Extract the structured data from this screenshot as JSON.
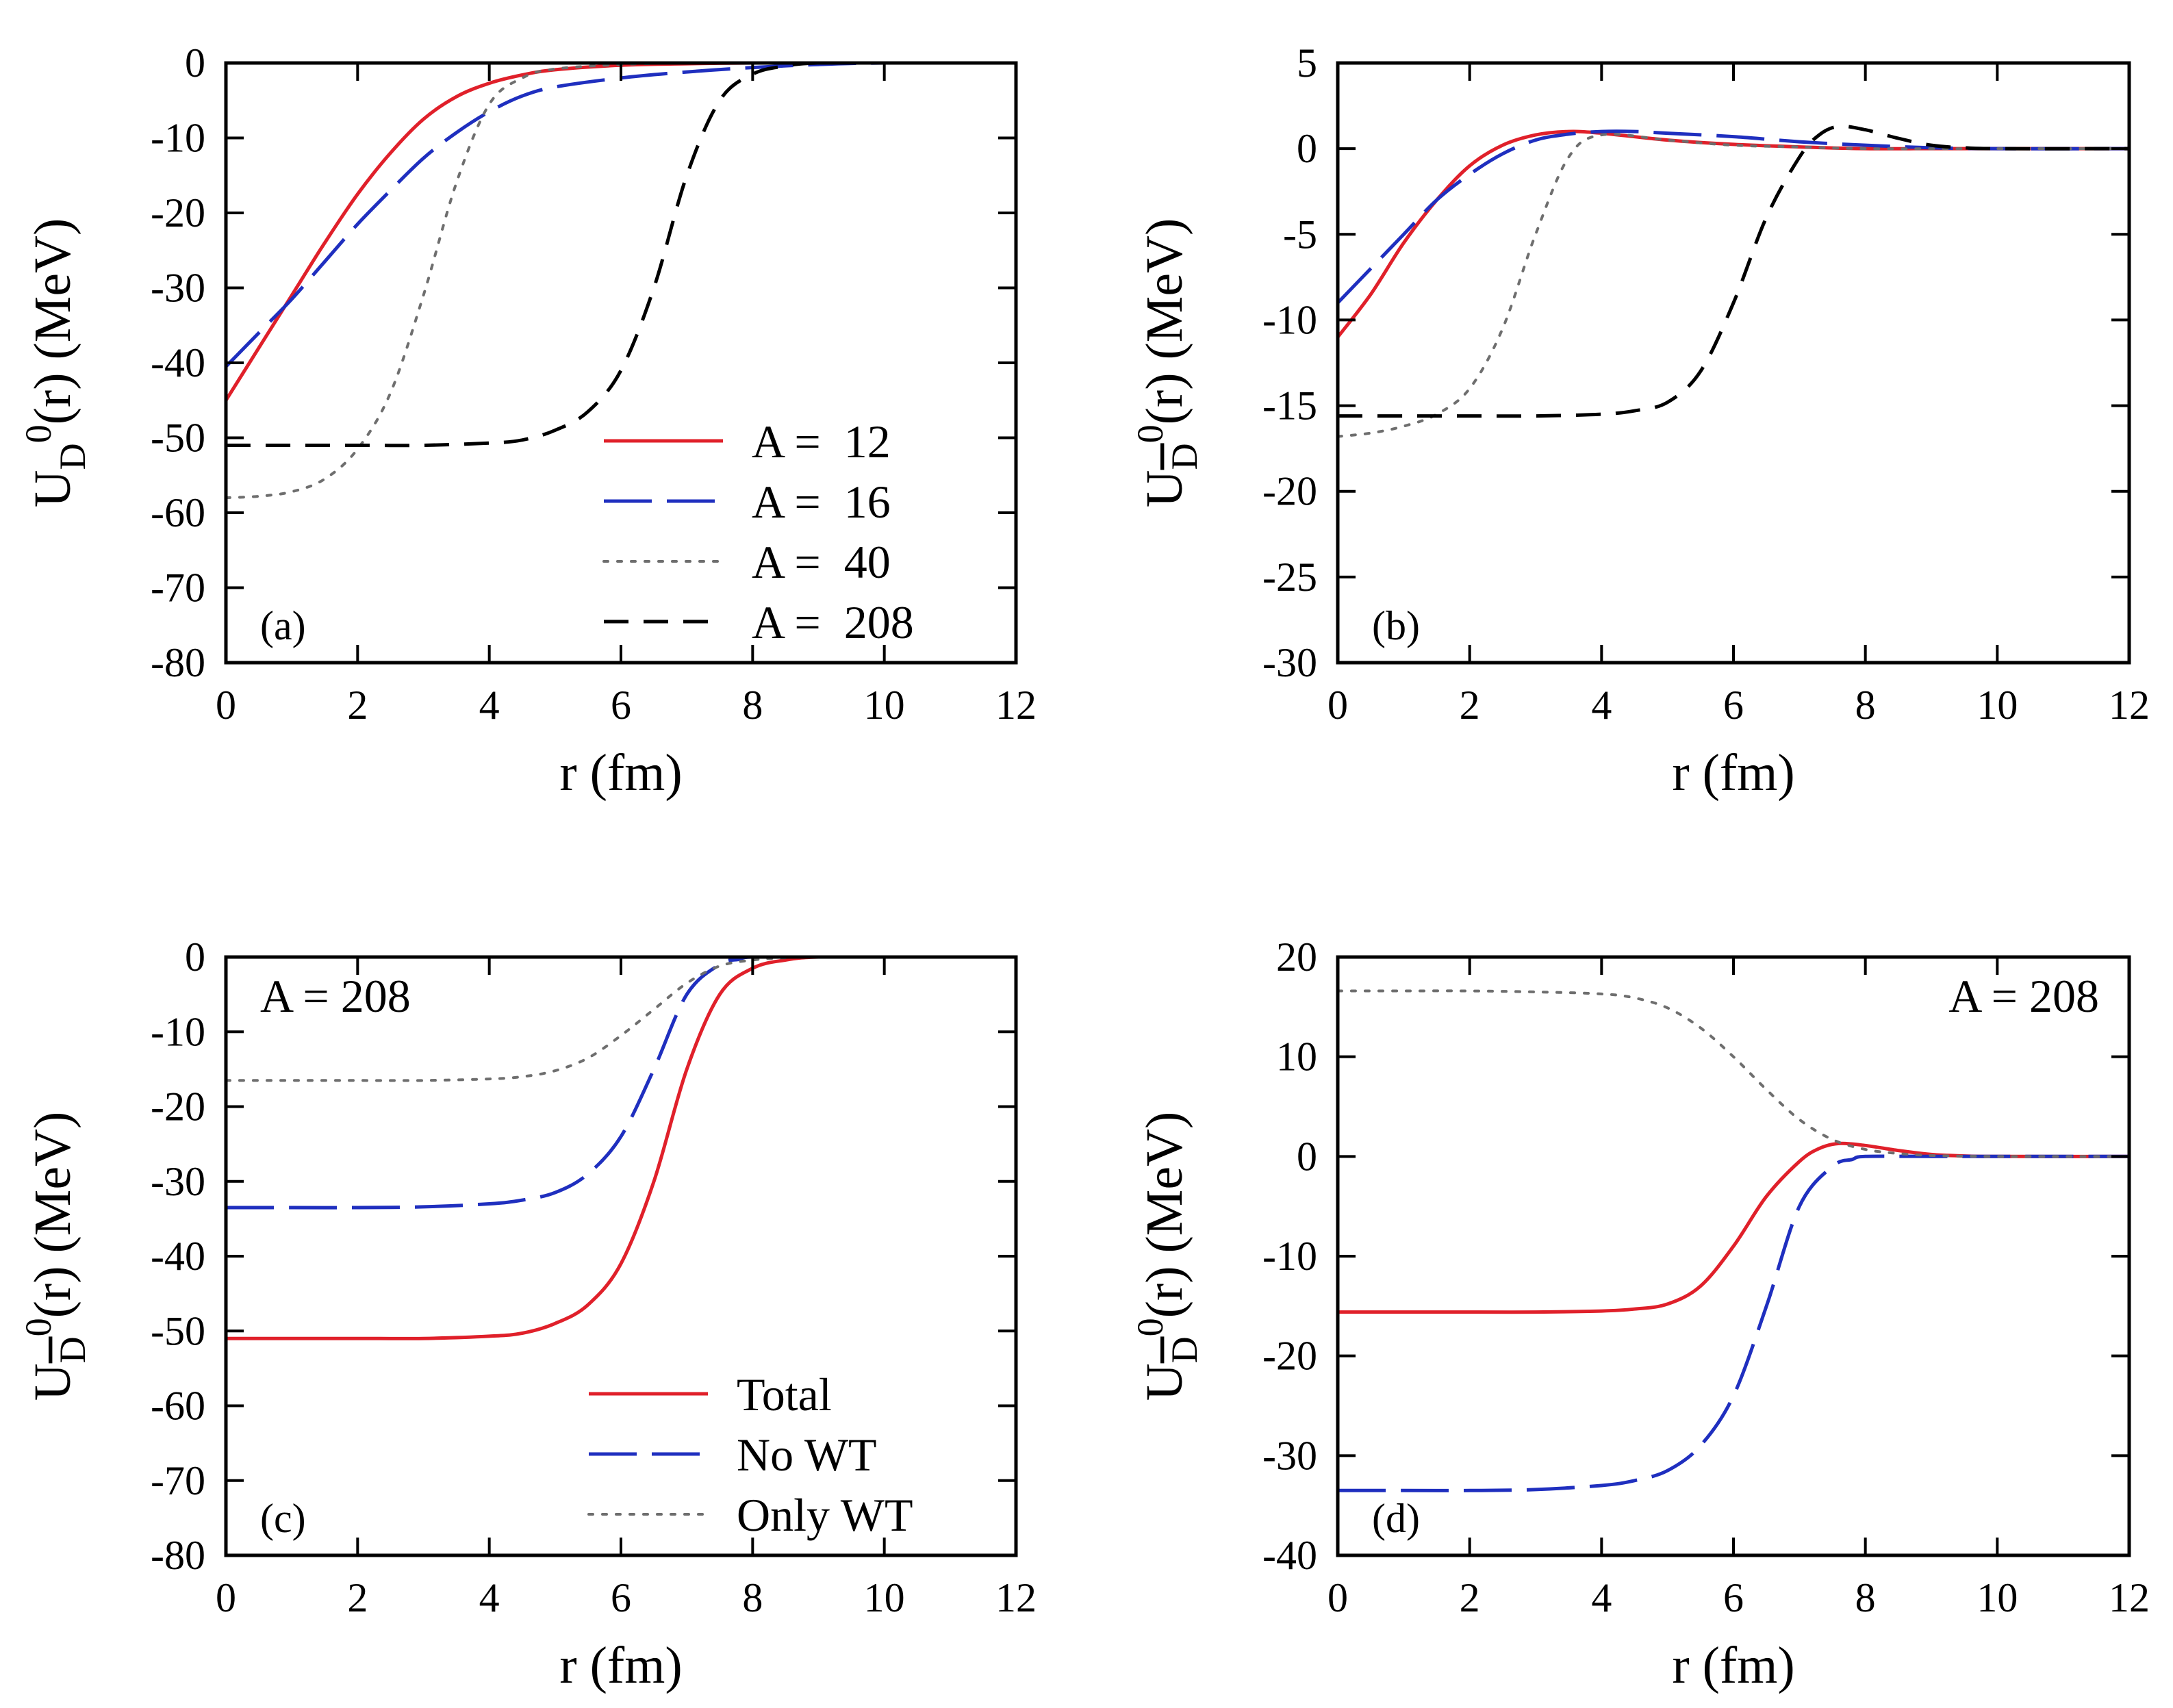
{
  "colors": {
    "red": "#e0202a",
    "blue": "#1f2fbf",
    "gray": "#6e6e6e",
    "black": "#000000"
  },
  "chart_data": [
    {
      "type": "line",
      "panel": "(a)",
      "annotation": "",
      "xlabel": "r (fm)",
      "ylabel": {
        "base": "U",
        "sub": "D",
        "bar": false,
        "sup": "0",
        "rest": "(r) (MeV)"
      },
      "xlim": [
        0,
        12
      ],
      "ylim": [
        -80,
        0
      ],
      "xticks": [
        0,
        2,
        4,
        6,
        8,
        10,
        12
      ],
      "yticks": [
        -80,
        -70,
        -60,
        -50,
        -40,
        -30,
        -20,
        -10,
        0
      ],
      "legend": "lower-right",
      "series": [
        {
          "name": "A =  12",
          "style": "solid",
          "color": "red",
          "x": [
            0,
            0.5,
            1,
            1.5,
            2,
            2.5,
            3,
            3.5,
            4,
            4.5,
            5,
            6,
            7,
            8,
            9,
            10,
            12
          ],
          "y": [
            -45,
            -38,
            -31,
            -24,
            -17.5,
            -12,
            -7.5,
            -4.5,
            -2.7,
            -1.6,
            -0.9,
            -0.3,
            -0.1,
            0,
            0,
            0,
            0
          ]
        },
        {
          "name": "A =  16",
          "style": "longdash",
          "color": "blue",
          "x": [
            0,
            0.5,
            1,
            1.5,
            2,
            2.5,
            3,
            3.5,
            4,
            4.5,
            5,
            6,
            7,
            8,
            9,
            10,
            12
          ],
          "y": [
            -40.5,
            -36,
            -31.5,
            -26.5,
            -21.5,
            -17,
            -12.7,
            -9.3,
            -6.5,
            -4.4,
            -3.2,
            -2,
            -1.2,
            -0.6,
            -0.2,
            0,
            0
          ]
        },
        {
          "name": "A =  40",
          "style": "dotted",
          "color": "gray",
          "x": [
            0,
            0.5,
            1,
            1.5,
            2,
            2.5,
            3,
            3.5,
            4,
            4.5,
            5,
            6,
            7,
            8,
            10,
            12
          ],
          "y": [
            -58,
            -57.8,
            -57.2,
            -55.5,
            -51.5,
            -44,
            -31,
            -16,
            -5.5,
            -2,
            -0.8,
            -0.2,
            0,
            0,
            0,
            0
          ]
        },
        {
          "name": "A =  208",
          "style": "dash",
          "color": "black",
          "x": [
            0,
            1,
            2,
            3,
            4,
            4.5,
            5,
            5.5,
            6,
            6.5,
            7,
            7.5,
            8,
            8.5,
            9,
            10,
            12
          ],
          "y": [
            -51,
            -51,
            -51,
            -51,
            -50.7,
            -50.3,
            -49,
            -46.5,
            -41,
            -30,
            -15,
            -5,
            -1.5,
            -0.4,
            0,
            0,
            0
          ]
        }
      ]
    },
    {
      "type": "line",
      "panel": "(b)",
      "annotation": "",
      "xlabel": "r (fm)",
      "ylabel": {
        "base": "U",
        "sub": "D",
        "bar": true,
        "sup": "0",
        "rest": "(r) (MeV)"
      },
      "xlim": [
        0,
        12
      ],
      "ylim": [
        -30,
        5
      ],
      "xticks": [
        0,
        2,
        4,
        6,
        8,
        10,
        12
      ],
      "yticks": [
        -30,
        -25,
        -20,
        -15,
        -10,
        -5,
        0,
        5
      ],
      "legend": "none",
      "series": [
        {
          "name": "A =  12",
          "style": "solid",
          "color": "red",
          "x": [
            0,
            0.5,
            1,
            1.5,
            2,
            2.5,
            3,
            3.5,
            4,
            5,
            6,
            7,
            8,
            9,
            10,
            12
          ],
          "y": [
            -11,
            -8.5,
            -5.5,
            -3,
            -1,
            0.2,
            0.8,
            1,
            0.9,
            0.5,
            0.25,
            0.1,
            0,
            0,
            0,
            0
          ]
        },
        {
          "name": "A =  16",
          "style": "longdash",
          "color": "blue",
          "x": [
            0,
            0.5,
            1,
            1.5,
            2,
            2.5,
            3,
            3.5,
            4,
            4.5,
            5,
            6,
            7,
            8,
            9,
            10,
            12
          ],
          "y": [
            -9,
            -7,
            -5,
            -3,
            -1.5,
            -0.3,
            0.5,
            0.85,
            1,
            1,
            0.9,
            0.7,
            0.4,
            0.2,
            0.05,
            0,
            0
          ]
        },
        {
          "name": "A =  40",
          "style": "dotted",
          "color": "gray",
          "x": [
            0,
            0.5,
            1,
            1.5,
            2,
            2.5,
            3,
            3.5,
            4,
            5,
            6,
            7,
            8,
            10,
            12
          ],
          "y": [
            -16.8,
            -16.6,
            -16.2,
            -15.5,
            -14,
            -10.5,
            -5,
            -0.5,
            0.8,
            0.5,
            0.2,
            0.1,
            0,
            0,
            0
          ]
        },
        {
          "name": "A =  208",
          "style": "dash",
          "color": "black",
          "x": [
            0,
            1,
            2,
            3,
            4,
            4.5,
            5,
            5.5,
            6,
            6.5,
            7,
            7.3,
            7.6,
            8,
            8.5,
            9,
            9.5,
            10,
            12
          ],
          "y": [
            -15.6,
            -15.6,
            -15.6,
            -15.6,
            -15.5,
            -15.3,
            -14.8,
            -13,
            -9,
            -4,
            -0.5,
            0.8,
            1.3,
            1.1,
            0.6,
            0.2,
            0.05,
            0,
            0
          ]
        }
      ]
    },
    {
      "type": "line",
      "panel": "(c)",
      "annotation": "A = 208",
      "xlabel": "r (fm)",
      "ylabel": {
        "base": "U",
        "sub": "D",
        "bar": true,
        "sup": "0",
        "rest": "(r) (MeV)"
      },
      "xlim": [
        0,
        12
      ],
      "ylim": [
        -80,
        0
      ],
      "xticks": [
        0,
        2,
        4,
        6,
        8,
        10,
        12
      ],
      "yticks": [
        -80,
        -70,
        -60,
        -50,
        -40,
        -30,
        -20,
        -10,
        0
      ],
      "legend": "lower-right",
      "series": [
        {
          "name": "Total",
          "style": "solid",
          "color": "red",
          "x": [
            0,
            1,
            2,
            3,
            4,
            4.5,
            5,
            5.5,
            6,
            6.5,
            7,
            7.5,
            8,
            8.5,
            9,
            10,
            12
          ],
          "y": [
            -51,
            -51,
            -51,
            -51,
            -50.7,
            -50.3,
            -49,
            -46.5,
            -41,
            -30,
            -15,
            -5,
            -1.5,
            -0.4,
            0,
            0,
            0
          ]
        },
        {
          "name": "No WT",
          "style": "longdash",
          "color": "blue",
          "x": [
            0,
            1,
            2,
            3,
            4,
            4.5,
            5,
            5.5,
            6,
            6.5,
            7,
            7.5,
            7.8,
            8,
            9,
            10,
            12
          ],
          "y": [
            -33.5,
            -33.5,
            -33.5,
            -33.4,
            -33,
            -32.5,
            -31.5,
            -29,
            -24,
            -15,
            -5,
            -1,
            -0.3,
            0,
            0,
            0,
            0
          ]
        },
        {
          "name": "Only WT",
          "style": "dotted",
          "color": "gray",
          "x": [
            0,
            1,
            2,
            3,
            4,
            4.5,
            5,
            5.5,
            6,
            6.5,
            7,
            7.5,
            8,
            8.5,
            9,
            10,
            12
          ],
          "y": [
            -16.5,
            -16.5,
            -16.5,
            -16.5,
            -16.3,
            -16,
            -15.2,
            -13.5,
            -10.5,
            -7,
            -3.5,
            -1.2,
            -0.4,
            -0.1,
            0,
            0,
            0
          ]
        }
      ]
    },
    {
      "type": "line",
      "panel": "(d)",
      "annotation": "A = 208",
      "xlabel": "r (fm)",
      "ylabel": {
        "base": "U",
        "sub": "D",
        "bar": true,
        "sup": "0",
        "rest": "(r) (MeV)"
      },
      "xlim": [
        0,
        12
      ],
      "ylim": [
        -40,
        20
      ],
      "xticks": [
        0,
        2,
        4,
        6,
        8,
        10,
        12
      ],
      "yticks": [
        -40,
        -30,
        -20,
        -10,
        0,
        10,
        20
      ],
      "legend": "none",
      "series": [
        {
          "name": "Total",
          "style": "solid",
          "color": "red",
          "x": [
            0,
            1,
            2,
            3,
            4,
            4.5,
            5,
            5.5,
            6,
            6.5,
            7,
            7.3,
            7.6,
            8,
            8.5,
            9,
            9.5,
            10,
            12
          ],
          "y": [
            -15.6,
            -15.6,
            -15.6,
            -15.6,
            -15.5,
            -15.3,
            -14.8,
            -13,
            -9,
            -4,
            -0.5,
            0.8,
            1.3,
            1.1,
            0.6,
            0.2,
            0.05,
            0,
            0
          ]
        },
        {
          "name": "No WT",
          "style": "longdash",
          "color": "blue",
          "x": [
            0,
            1,
            2,
            3,
            4,
            4.5,
            5,
            5.5,
            6,
            6.5,
            7,
            7.5,
            7.8,
            8,
            9,
            10,
            12
          ],
          "y": [
            -33.5,
            -33.5,
            -33.5,
            -33.4,
            -33,
            -32.5,
            -31.5,
            -29,
            -24,
            -15,
            -5,
            -1,
            -0.3,
            0,
            0,
            0,
            0
          ]
        },
        {
          "name": "Only WT",
          "style": "dotted",
          "color": "gray",
          "x": [
            0,
            1,
            2,
            3,
            4,
            4.5,
            5,
            5.5,
            6,
            6.5,
            7,
            7.5,
            8,
            8.5,
            9,
            10,
            12
          ],
          "y": [
            16.6,
            16.6,
            16.6,
            16.5,
            16.3,
            15.9,
            14.9,
            12.9,
            10,
            6.7,
            3.7,
            1.7,
            0.7,
            0.3,
            0.1,
            0,
            0
          ]
        }
      ]
    }
  ]
}
